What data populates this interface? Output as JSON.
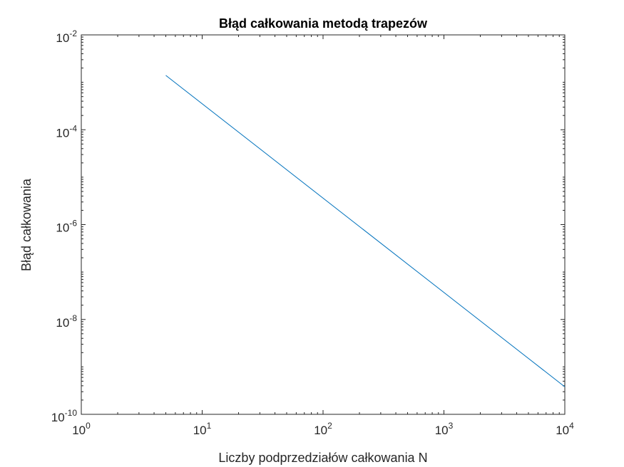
{
  "chart_data": {
    "type": "line",
    "title": "Błąd całkowania metodą trapezów",
    "xlabel": "Liczby podprzedziałów całkowania N",
    "ylabel": "Błąd całkowania",
    "x_scale": "log",
    "y_scale": "log",
    "xlim": [
      1,
      10000
    ],
    "ylim": [
      1e-10,
      0.01
    ],
    "grid": false,
    "x_ticks": [
      {
        "base": "10",
        "exp": "0"
      },
      {
        "base": "10",
        "exp": "1"
      },
      {
        "base": "10",
        "exp": "2"
      },
      {
        "base": "10",
        "exp": "3"
      },
      {
        "base": "10",
        "exp": "4"
      }
    ],
    "y_ticks": [
      {
        "base": "10",
        "exp": "-10"
      },
      {
        "base": "10",
        "exp": "-8"
      },
      {
        "base": "10",
        "exp": "-6"
      },
      {
        "base": "10",
        "exp": "-4"
      },
      {
        "base": "10",
        "exp": "-2"
      }
    ],
    "series": [
      {
        "color": "#0072bd",
        "x": [
          5,
          10000
        ],
        "y": [
          0.0014,
          3.8e-10
        ]
      }
    ]
  }
}
